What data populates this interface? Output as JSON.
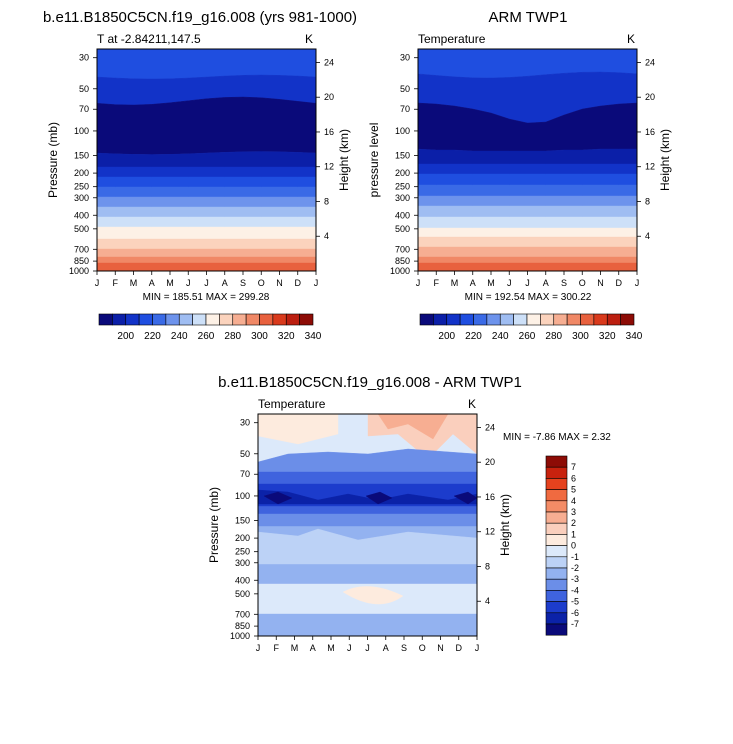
{
  "months": [
    "J",
    "F",
    "M",
    "A",
    "M",
    "J",
    "J",
    "A",
    "S",
    "O",
    "N",
    "D",
    "J"
  ],
  "pressure_ticks": [
    30,
    50,
    70,
    100,
    150,
    200,
    250,
    300,
    400,
    500,
    700,
    850,
    1000
  ],
  "chart_data": [
    {
      "type": "heatmap",
      "id": "model",
      "title": "b.e11.B1850C5CN.f19_g16.008 (yrs 981-1000)",
      "left_label": "T at -2.84211,147.5",
      "unit": "K",
      "ylabel": "Pressure (mb)",
      "right_label": "Height (km)",
      "height_ticks": [
        24,
        20,
        16,
        12,
        8,
        4
      ],
      "stats": "MIN = 185.51  MAX = 299.28",
      "min": 185.51,
      "max": 299.28
    },
    {
      "type": "heatmap",
      "id": "obs",
      "title": "ARM TWP1",
      "left_label": "Temperature",
      "unit": "K",
      "ylabel": "pressure level",
      "right_label": "Height (km)",
      "height_ticks": [
        24,
        20,
        16,
        12,
        8,
        4
      ],
      "stats": "MIN = 192.54  MAX = 300.22",
      "min": 192.54,
      "max": 300.22
    },
    {
      "type": "heatmap",
      "id": "diff",
      "title": "b.e11.B1850C5CN.f19_g16.008 - ARM TWP1",
      "left_label": "Temperature",
      "unit": "K",
      "ylabel": "Pressure (mb)",
      "right_label": "Height (km)",
      "height_ticks": [
        24,
        20,
        16,
        12,
        8,
        4
      ],
      "stats": "MIN =  -7.86  MAX =   2.32",
      "min": -7.86,
      "max": 2.32
    }
  ],
  "colorbar_temp": {
    "labels": [
      "200",
      "220",
      "240",
      "260",
      "280",
      "300",
      "320",
      "340"
    ],
    "colors": [
      "#0a0a7a",
      "#0b1fa8",
      "#1233c8",
      "#1f4ee0",
      "#3a6ae6",
      "#6d93ec",
      "#9fbdf2",
      "#cde0f8",
      "#fdf1e6",
      "#fbd3bd",
      "#f6ae92",
      "#f08866",
      "#e8613e",
      "#d93a1c",
      "#bc1f10",
      "#8d0c06"
    ]
  },
  "colorbar_diff": {
    "labels": [
      "7",
      "6",
      "5",
      "4",
      "3",
      "2",
      "1",
      "0",
      "-1",
      "-2",
      "-3",
      "-4",
      "-5",
      "-6",
      "-7"
    ],
    "colors": [
      "#8d0c06",
      "#c8220e",
      "#e5421e",
      "#f06a40",
      "#f48c66",
      "#f7ae92",
      "#facfbd",
      "#fdebde",
      "#dce9fa",
      "#bcd2f6",
      "#93b2f0",
      "#6b8ee8",
      "#3f63de",
      "#1c3ccc",
      "#0b22a8",
      "#0a0a7a"
    ]
  }
}
